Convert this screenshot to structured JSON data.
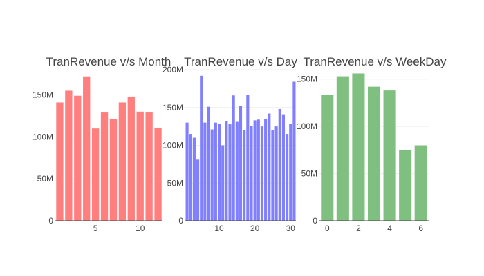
{
  "chart_data": [
    {
      "type": "bar",
      "title": "TranRevenue v/s Month",
      "color": "#ff7f7f",
      "x": [
        1,
        2,
        3,
        4,
        5,
        6,
        7,
        8,
        9,
        10,
        11,
        12
      ],
      "values": [
        141000000,
        155000000,
        149000000,
        172000000,
        110000000,
        129000000,
        121000000,
        141000000,
        148000000,
        130000000,
        129000000,
        111000000
      ],
      "xlim": [
        0.5,
        12.5
      ],
      "ylim": [
        0,
        180000000
      ],
      "xticks": [
        5,
        10
      ],
      "xtick_labels": [
        "5",
        "10"
      ],
      "yticks": [
        0,
        50000000,
        100000000,
        150000000
      ],
      "ytick_labels": [
        "0",
        "50M",
        "100M",
        "150M"
      ],
      "grid": true
    },
    {
      "type": "bar",
      "title": "TranRevenue v/s Day",
      "color": "#7f7fff",
      "x": [
        1,
        2,
        3,
        4,
        5,
        6,
        7,
        8,
        9,
        10,
        11,
        12,
        13,
        14,
        15,
        16,
        17,
        18,
        19,
        20,
        21,
        22,
        23,
        24,
        25,
        26,
        27,
        28,
        29,
        30,
        31
      ],
      "values": [
        130000000,
        115000000,
        110000000,
        81000000,
        192000000,
        130000000,
        151000000,
        121000000,
        130000000,
        128000000,
        100000000,
        132000000,
        128000000,
        166000000,
        131000000,
        152000000,
        120000000,
        167000000,
        126000000,
        133000000,
        134000000,
        125000000,
        135000000,
        142000000,
        120000000,
        125000000,
        148000000,
        141000000,
        115000000,
        128000000,
        184000000
      ],
      "xlim": [
        0.5,
        31.5
      ],
      "ylim": [
        0,
        200000000
      ],
      "xticks": [
        10,
        20,
        30
      ],
      "xtick_labels": [
        "10",
        "20",
        "30"
      ],
      "yticks": [
        0,
        50000000,
        100000000,
        150000000,
        200000000
      ],
      "ytick_labels": [
        "0",
        "50M",
        "100M",
        "150M",
        "200M"
      ],
      "grid": true
    },
    {
      "type": "bar",
      "title": "TranRevenue v/s WeekDay",
      "color": "#7fbf7f",
      "x": [
        0,
        1,
        2,
        3,
        4,
        5,
        6
      ],
      "values": [
        133000000,
        153000000,
        156000000,
        142000000,
        138000000,
        75000000,
        80000000
      ],
      "xlim": [
        -0.5,
        6.5
      ],
      "ylim": [
        0,
        160000000
      ],
      "xticks": [
        0,
        2,
        4,
        6
      ],
      "xtick_labels": [
        "0",
        "2",
        "4",
        "6"
      ],
      "yticks": [
        0,
        50000000,
        100000000,
        150000000
      ],
      "ytick_labels": [
        "0",
        "50M",
        "100M",
        "150M"
      ],
      "grid": true
    }
  ]
}
